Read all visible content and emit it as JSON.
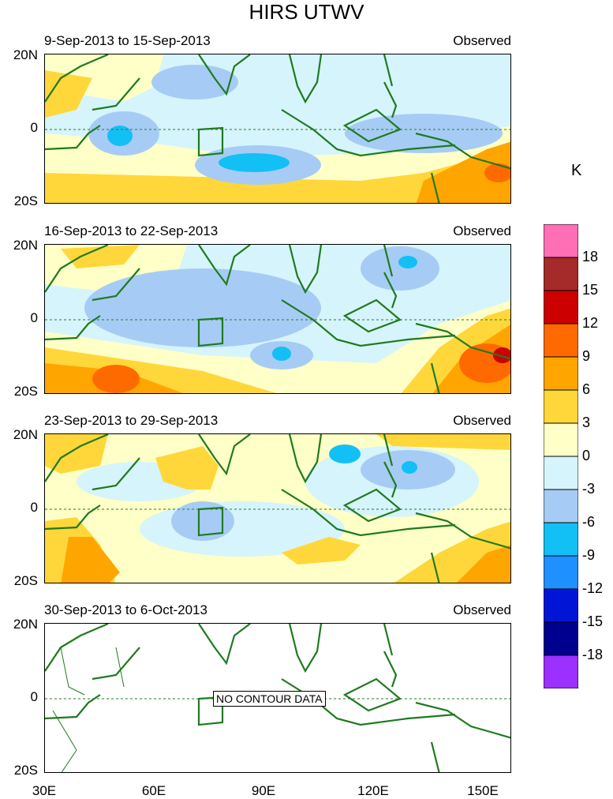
{
  "title": "HIRS UTWV",
  "unit": "K",
  "panels": [
    {
      "title": "9-Sep-2013 to 15-Sep-2013",
      "status": "Observed"
    },
    {
      "title": "16-Sep-2013 to 22-Sep-2013",
      "status": "Observed"
    },
    {
      "title": "23-Sep-2013 to 29-Sep-2013",
      "status": "Observed"
    },
    {
      "title": "30-Sep-2013 to 6-Oct-2013",
      "status": "Observed",
      "note": "NO CONTOUR DATA"
    }
  ],
  "axes": {
    "lat_labels": [
      "20N",
      "0",
      "20S"
    ],
    "lon_labels": [
      "30E",
      "60E",
      "90E",
      "120E",
      "150E"
    ]
  },
  "colorbar": {
    "labels": [
      "18",
      "15",
      "12",
      "9",
      "6",
      "3",
      "0",
      "-3",
      "-6",
      "-9",
      "-12",
      "-15",
      "-18"
    ],
    "colors": [
      "#ff6fb5",
      "#a52a2a",
      "#cd0000",
      "#ff6a00",
      "#ffa500",
      "#ffd73a",
      "#ffffc8",
      "#d6f4fb",
      "#a6ccf5",
      "#12c0f5",
      "#1e90ff",
      "#0015d6",
      "#00008f",
      "#9b30ff"
    ]
  }
}
